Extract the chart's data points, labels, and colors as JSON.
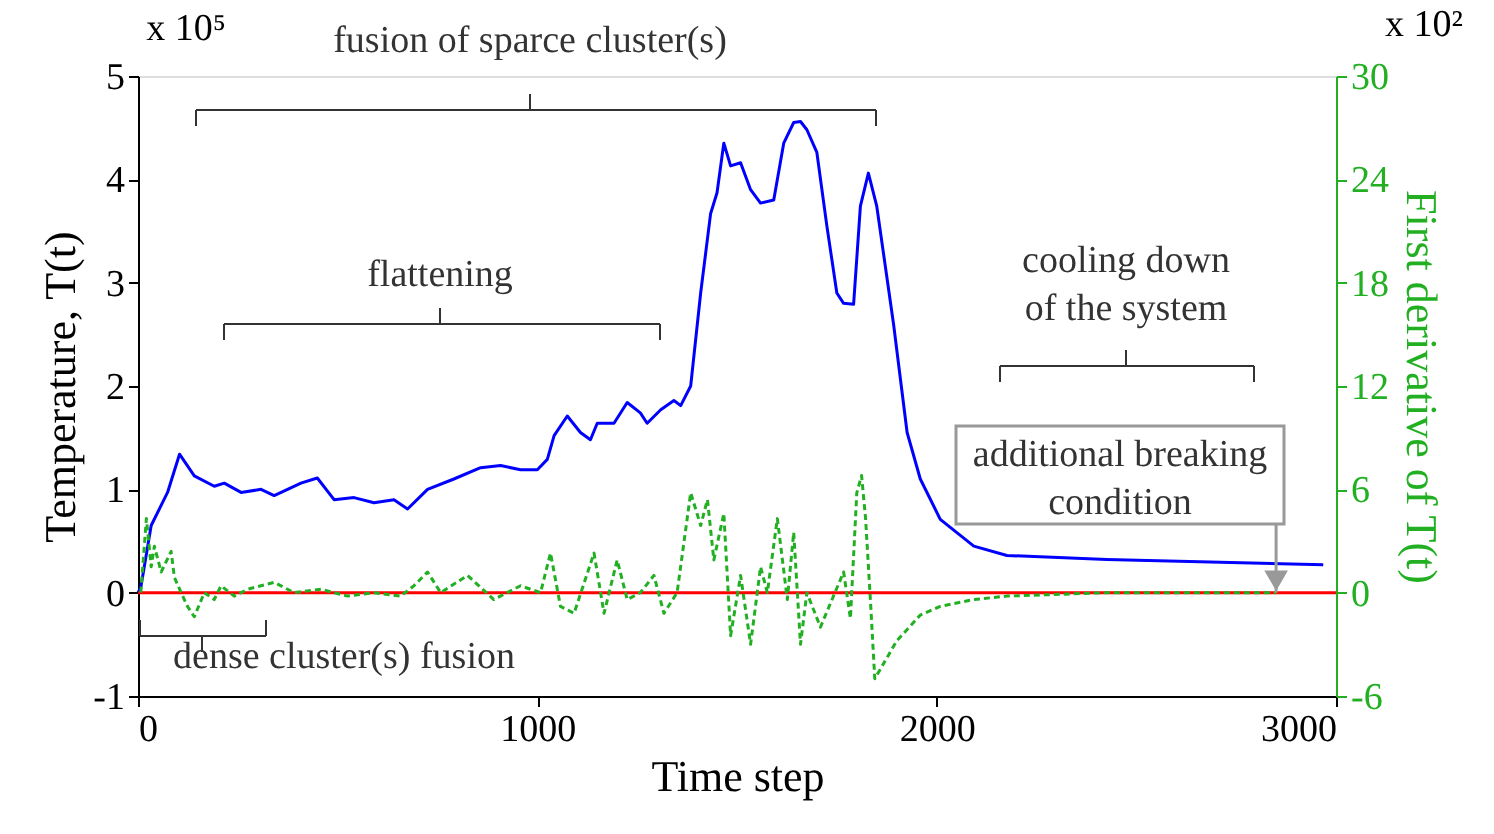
{
  "chart_data": {
    "type": "line",
    "xlabel": "Time step",
    "ylabel": "Temperature, T(t)",
    "y2label": "First derivative of T(t)",
    "xlim": [
      0,
      3000
    ],
    "xticks": [
      0,
      1000,
      2000,
      3000
    ],
    "ylim": [
      -1,
      5
    ],
    "yticks": [
      -1,
      0,
      1,
      2,
      3,
      4,
      5
    ],
    "y2lim": [
      -6,
      30
    ],
    "y2ticks": [
      -6,
      0,
      6,
      12,
      18,
      24,
      30
    ],
    "marker": "none",
    "series": [
      {
        "color": "#0000ff",
        "line_style": "solid",
        "x": [
          0,
          7,
          33,
          74,
          104,
          141,
          191,
          216,
          258,
          308,
          341,
          408,
          449,
          491,
          541,
          591,
          641,
          675,
          725,
          791,
          858,
          908,
          958,
          1000,
          1025,
          1042,
          1075,
          1108,
          1133,
          1150,
          1192,
          1225,
          1258,
          1275,
          1309,
          1342,
          1359,
          1384,
          1409,
          1434,
          1450,
          1467,
          1484,
          1509,
          1534,
          1559,
          1592,
          1617,
          1642,
          1659,
          1675,
          1700,
          1725,
          1750,
          1767,
          1792,
          1809,
          1829,
          1850,
          1892,
          1926,
          1959,
          2009,
          2093,
          2176,
          2426,
          2968
        ],
        "values": [
          0,
          0.05,
          0.65,
          0.97,
          1.34,
          1.13,
          1.03,
          1.06,
          0.97,
          1.0,
          0.94,
          1.06,
          1.11,
          0.9,
          0.92,
          0.87,
          0.9,
          0.81,
          1.0,
          1.1,
          1.21,
          1.23,
          1.19,
          1.19,
          1.29,
          1.52,
          1.71,
          1.55,
          1.48,
          1.64,
          1.64,
          1.84,
          1.74,
          1.64,
          1.77,
          1.86,
          1.81,
          2.0,
          2.9,
          3.67,
          3.87,
          4.35,
          4.13,
          4.16,
          3.9,
          3.77,
          3.8,
          4.35,
          4.55,
          4.56,
          4.48,
          4.26,
          3.55,
          2.9,
          2.8,
          2.79,
          3.74,
          4.06,
          3.74,
          2.6,
          1.55,
          1.1,
          0.71,
          0.45,
          0.36,
          0.32,
          0.27
        ]
      },
      {
        "color": "#22b022",
        "axis": "y2",
        "line_style": "dashed",
        "x": [
          7,
          21,
          33,
          41,
          58,
          83,
          91,
          108,
          124,
          141,
          166,
          191,
          208,
          241,
          275,
          341,
          391,
          458,
          525,
          591,
          658,
          691,
          725,
          758,
          825,
          891,
          958,
          1008,
          1033,
          1058,
          1092,
          1142,
          1167,
          1200,
          1225,
          1258,
          1292,
          1317,
          1350,
          1384,
          1409,
          1426,
          1442,
          1467,
          1484,
          1509,
          1534,
          1559,
          1576,
          1601,
          1626,
          1642,
          1659,
          1675,
          1709,
          1767,
          1784,
          1800,
          1812,
          1822,
          1834,
          1845,
          1870,
          1900,
          1959,
          2009,
          2093,
          2176,
          2426,
          2850
        ],
        "values": [
          0,
          4.3,
          1.5,
          2.7,
          1.2,
          2.4,
          0.9,
          0,
          -0.8,
          -1.4,
          0,
          -0.4,
          0.4,
          -0.2,
          0.2,
          0.6,
          0,
          0.2,
          -0.2,
          0,
          -0.2,
          0.4,
          1.2,
          0,
          1.0,
          -0.4,
          0.4,
          0,
          2.3,
          -0.8,
          -1.2,
          2.3,
          -1.2,
          1.9,
          -0.4,
          0,
          1.0,
          -1.2,
          0,
          5.8,
          3.9,
          5.4,
          1.9,
          4.6,
          -2.5,
          1.0,
          -3.0,
          1.5,
          0,
          4.3,
          -0.4,
          3.5,
          -3.0,
          0,
          -2.0,
          1.2,
          -1.5,
          5.8,
          6.8,
          4.3,
          -0.4,
          -5.0,
          -4.0,
          -2.8,
          -1.3,
          -0.8,
          -0.4,
          -0.2,
          0,
          0
        ]
      }
    ],
    "ref_lines": [
      {
        "axis": "y",
        "value": 0,
        "color": "#ff0000"
      }
    ],
    "annotations": [
      "fusion of sparce cluster(s)",
      "flattening",
      "cooling down\nof the system",
      "dense cluster(s) fusion",
      {
        "text": "additional breaking\ncondition",
        "x": 2850,
        "y": 0
      },
      "x 10⁵",
      "x 10²"
    ]
  }
}
